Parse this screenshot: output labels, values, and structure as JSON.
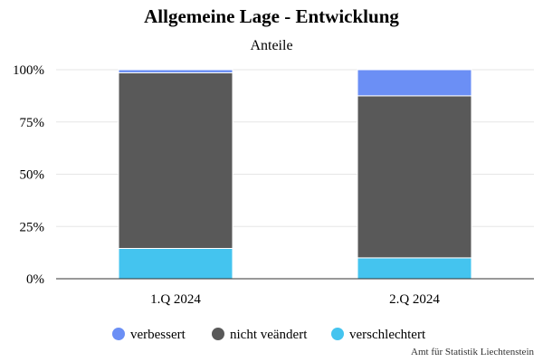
{
  "title": "Allgemeine Lage - Entwicklung",
  "subtitle": "Anteile",
  "source": "Amt für Statistik Liechtenstein",
  "chart_data": {
    "type": "bar",
    "stacked": true,
    "categories": [
      "1.Q 2024",
      "2.Q 2024"
    ],
    "series": [
      {
        "name": "verschlechtert",
        "color": "#44c4ef",
        "values": [
          14.5,
          10
        ]
      },
      {
        "name": "nicht veändert",
        "color": "#595959",
        "values": [
          84,
          77.5
        ]
      },
      {
        "name": "verbessert",
        "color": "#6b8ff5",
        "values": [
          1.5,
          12.5
        ]
      }
    ],
    "legend_order": [
      "verbessert",
      "nicht veändert",
      "verschlechtert"
    ],
    "ylim": [
      0,
      100
    ],
    "yticks": [
      "0%",
      "25%",
      "50%",
      "75%",
      "100%"
    ],
    "ytick_values": [
      0,
      25,
      50,
      75,
      100
    ],
    "grid": true,
    "legend_position": "bottom"
  }
}
